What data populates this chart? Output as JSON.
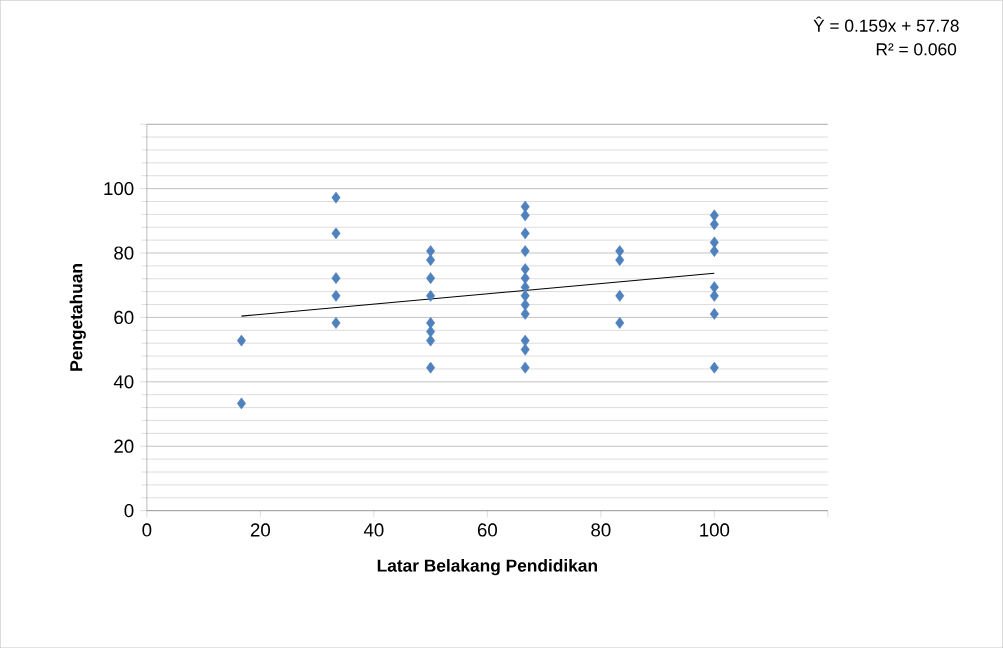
{
  "chart_data": {
    "type": "scatter",
    "xlabel": "Latar Belakang Pendidikan",
    "ylabel": "Pengetahuan",
    "annotations": [
      "Ŷ = 0.159x + 57.78",
      "R² = 0.060"
    ],
    "xlim": [
      0,
      120
    ],
    "ylim": [
      0,
      120
    ],
    "xticks": [
      0,
      20,
      40,
      60,
      80,
      100,
      {
        "value": 120,
        "label": null
      }
    ],
    "yticks": [
      0,
      20,
      40,
      60,
      80,
      100,
      {
        "value": 120,
        "label": null
      }
    ],
    "grid": "y",
    "series": [
      {
        "marker": "diamond",
        "color": "#4f81bd",
        "x": [
          16.67,
          16.67,
          33.33,
          33.33,
          33.33,
          33.33,
          33.33,
          50,
          50,
          50,
          50,
          50,
          50,
          50,
          50,
          66.67,
          66.67,
          66.67,
          66.67,
          66.67,
          66.67,
          66.67,
          66.67,
          66.67,
          66.67,
          66.67,
          66.67,
          66.67,
          83.33,
          83.33,
          83.33,
          83.33,
          100,
          100,
          100,
          100,
          100,
          100,
          100,
          100
        ],
        "values": [
          52.8,
          33.3,
          97.2,
          86.1,
          72.2,
          66.7,
          58.3,
          80.6,
          77.8,
          72.2,
          66.7,
          58.3,
          55.6,
          52.8,
          44.4,
          94.4,
          91.7,
          86.1,
          80.6,
          75,
          72.2,
          69.4,
          66.7,
          63.9,
          61.1,
          52.8,
          50,
          44.4,
          80.6,
          77.8,
          66.7,
          58.3,
          91.7,
          88.9,
          83.3,
          80.6,
          69.4,
          66.7,
          61.1,
          44.4
        ]
      },
      {
        "type": "line",
        "color": "#000000",
        "x": [
          16.67,
          100
        ],
        "values": [
          60.4,
          73.7
        ]
      }
    ]
  }
}
